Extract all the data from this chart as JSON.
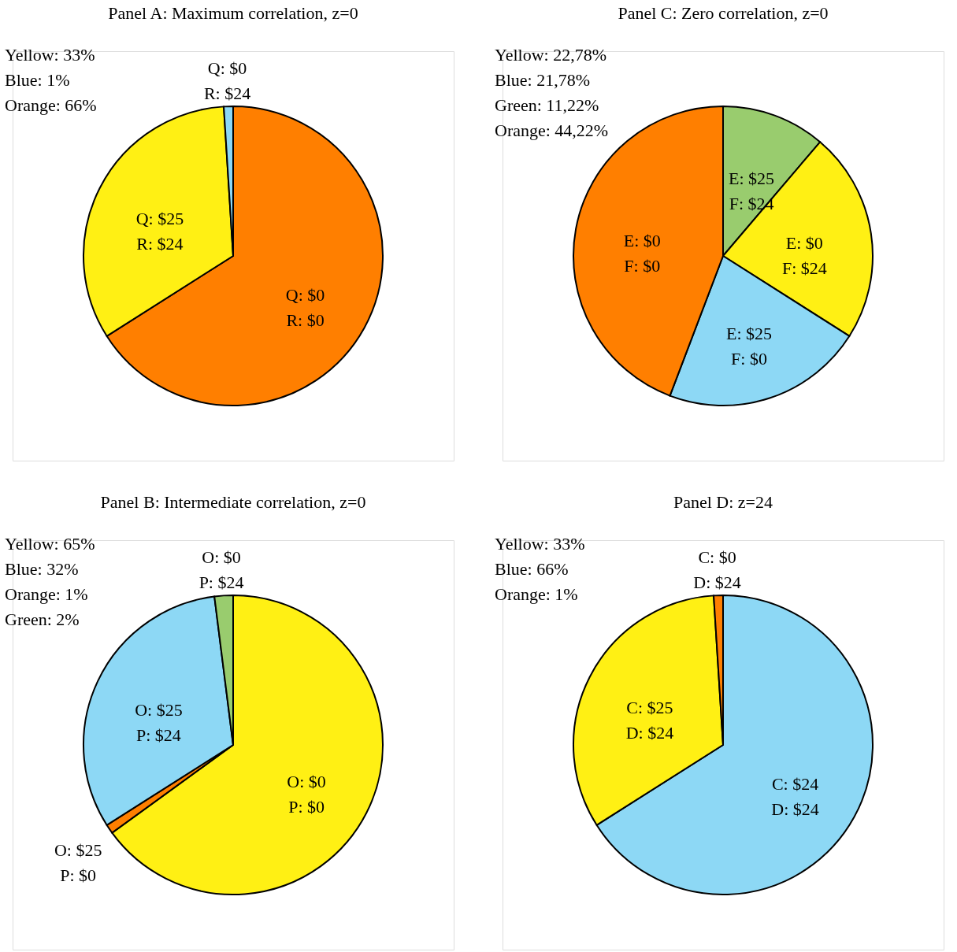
{
  "chart_data": [
    {
      "type": "pie",
      "title": "Panel A: Maximum correlation, z=0",
      "categories": [
        null,
        null,
        null
      ],
      "values": [
        66,
        33,
        1
      ],
      "colors": [
        "#ff7f00",
        "#fff014",
        "#8dd8f5"
      ],
      "value_labels": [
        "Q: $0\nR: $0",
        "Q: $25\nR: $24",
        "Q: $0\nR: $24"
      ],
      "annotations": [
        "Yellow: 33%",
        "Blue: 1%",
        "Orange: 66%"
      ]
    },
    {
      "type": "pie",
      "title": "Panel C: Zero correlation, z=0",
      "categories": [
        null,
        null,
        null,
        null
      ],
      "values": [
        11.22,
        22.78,
        21.78,
        44.22
      ],
      "colors": [
        "#99cc6e",
        "#fff014",
        "#8dd8f5",
        "#ff7f00"
      ],
      "value_labels": [
        "E: $25\nF: $24",
        "E: $0\nF: $24",
        "E: $25\nF: $0",
        "E: $0\nF: $0"
      ],
      "annotations": [
        "Yellow: 22,78%",
        "Blue: 21,78%",
        "Green: 11,22%",
        "Orange: 44,22%"
      ]
    },
    {
      "type": "pie",
      "title": "Panel B: Intermediate correlation, z=0",
      "categories": [
        null,
        null,
        null,
        null
      ],
      "values": [
        65,
        1,
        32,
        2
      ],
      "colors": [
        "#fff014",
        "#ff7f00",
        "#8dd8f5",
        "#99cc6e"
      ],
      "value_labels": [
        "O: $0\nP: $0",
        "O: $25\nP: $0",
        "O: $25\nP: $24",
        "O: $0\nP: $24"
      ],
      "annotations": [
        "Yellow: 65%",
        "Blue: 32%",
        "Orange: 1%",
        "Green: 2%"
      ]
    },
    {
      "type": "pie",
      "title": "Panel D: z=24",
      "categories": [
        null,
        null,
        null
      ],
      "values": [
        66,
        33,
        1
      ],
      "colors": [
        "#8dd8f5",
        "#fff014",
        "#ff7f00"
      ],
      "value_labels": [
        "C: $24\nD: $24",
        "C: $25\nD: $24",
        "C: $0\nD: $24"
      ],
      "annotations": [
        "Yellow: 33%",
        "Blue: 66%",
        "Orange: 1%"
      ]
    }
  ]
}
